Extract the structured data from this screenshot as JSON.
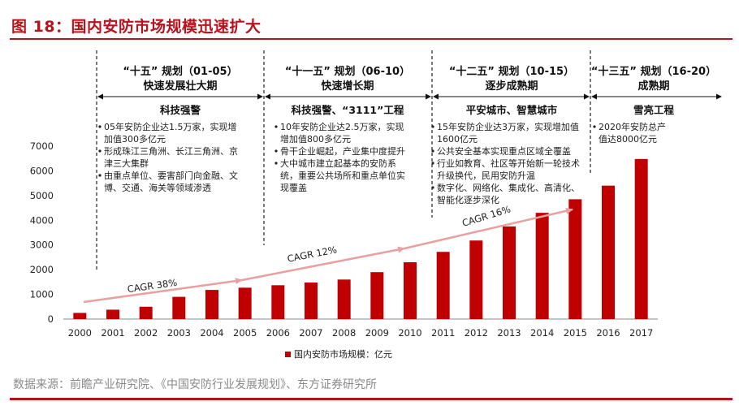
{
  "page": {
    "title": "图 18：国内安防市场规模迅速扩大",
    "source": "数据来源：前瞻产业研究院、《中国安防行业发展规划》、东方证券研究所"
  },
  "colors": {
    "accent": "#b8121c",
    "bar": "#c00000",
    "arrow": "#e8a0a0"
  },
  "chart_data": {
    "type": "bar",
    "title": "国内安防市场规模迅速扩大",
    "xlabel": "",
    "ylabel": "",
    "categories": [
      "2000",
      "2001",
      "2002",
      "2003",
      "2004",
      "2005",
      "2006",
      "2007",
      "2008",
      "2009",
      "2010",
      "2011",
      "2012",
      "2013",
      "2014",
      "2015",
      "2016",
      "2017"
    ],
    "series": [
      {
        "name": "国内安防市场规模：亿元",
        "values": [
          250,
          380,
          500,
          900,
          1180,
          1270,
          1370,
          1480,
          1600,
          1900,
          2300,
          2720,
          3180,
          3750,
          4300,
          4850,
          5400,
          6480
        ]
      }
    ],
    "ylim": [
      0,
      7000
    ],
    "yticks": [
      0,
      1000,
      2000,
      3000,
      4000,
      5000,
      6000,
      7000
    ],
    "grid": false,
    "legend": "bottom-center",
    "annotations": [
      {
        "text": "CAGR 38%",
        "from": "2000",
        "to": "2005"
      },
      {
        "text": "CAGR 12%",
        "from": "2005",
        "to": "2010"
      },
      {
        "text": "CAGR 16%",
        "from": "2010",
        "to": "2015"
      }
    ],
    "periods": [
      {
        "title": "“十五” 规划（01-05）",
        "subtitle": "快速发展壮大期",
        "theme": "科技强警",
        "notes": [
          "05年安防企业达1.5万家，实现增",
          "加值300多亿元",
          "形成珠江三角洲、长江三角洲、京",
          "津三大集群",
          "由重点单位、要害部门向金融、文",
          "博、交通、海关等领域渗透"
        ]
      },
      {
        "title": "“十一五” 规划（06-10）",
        "subtitle": "快速增长期",
        "theme": "科技强警、“3111”工程",
        "notes": [
          "10年安防企业达2.5万家，实现",
          "增加值800多亿元",
          "骨干企业崛起，产业集中度提升",
          "大中城市建立起基本的安防系",
          "统，重要公共场所和重点单位实",
          "现覆盖"
        ]
      },
      {
        "title": "“十二五” 规划（10-15）",
        "subtitle": "逐步成熟期",
        "theme": "平安城市、智慧城市",
        "notes": [
          "15年安防企业达3万家，实现增加值",
          "1600亿元",
          "公共安全基本实现重点区域全覆盖",
          "行业如教育、社区等开始新一轮技术",
          "升级换代，民用安防升温",
          "数字化、网络化、集成化、高清化、",
          "智能化逐步深化"
        ]
      },
      {
        "title": "“十三五” 规划（16-20）",
        "subtitle": "成熟期",
        "theme": "雪亮工程",
        "notes": [
          "2020年安防总产",
          "值达8000亿元"
        ]
      }
    ]
  }
}
